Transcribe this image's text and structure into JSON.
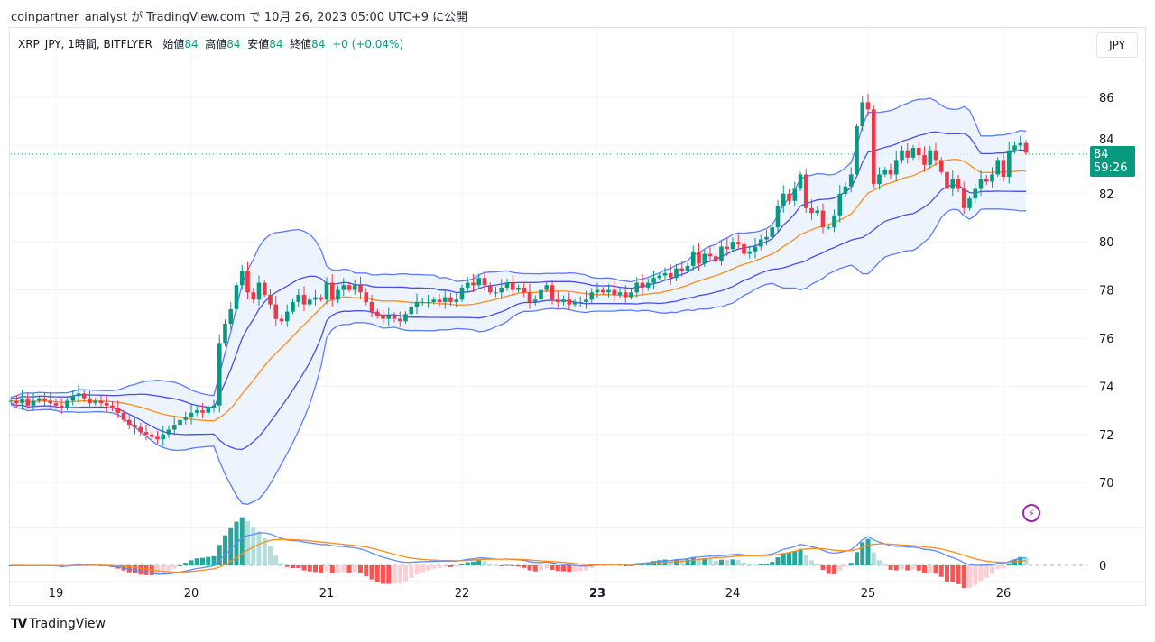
{
  "header": {
    "published": "coinpartner_analyst が TradingView.com で 10月 26, 2023 05:00 UTC+9 に公開"
  },
  "legend": {
    "symbol": "XRP_JPY, 1時間, BITFLYER",
    "open_label": "始値",
    "open": "84",
    "high_label": "高値",
    "high": "84",
    "low_label": "安値",
    "low": "84",
    "close_label": "終値",
    "close": "84",
    "change": "+0 (+0.04%)"
  },
  "currency_button": "JPY",
  "price_tag": {
    "price": "84",
    "countdown": "59:26"
  },
  "footer": {
    "brand": "TradingView",
    "logo_text": "TV"
  },
  "colors": {
    "up": "#089981",
    "down": "#f23645",
    "bb_outer": "#5b7cff",
    "bb_inner": "#4a4fe8",
    "basis": "#ff8c1a",
    "band_fill": "#e8f1fd",
    "macd": "#5b8cff",
    "signal": "#ff8c1a",
    "alert_icon": "#9c27b0"
  },
  "icons": {
    "alert": "lightning-icon"
  },
  "chart_data": {
    "type": "candlestick",
    "interval": "1時間",
    "y_ticks": [
      "86",
      "84",
      "82",
      "80",
      "78",
      "76",
      "74",
      "72",
      "70"
    ],
    "ylim": [
      69,
      87
    ],
    "x_tick_labels": [
      "19",
      "20",
      "21",
      "22",
      "23",
      "24",
      "25",
      "26"
    ],
    "grid": true,
    "indicators": [
      "Bollinger Bands (2σ)",
      "Bollinger Bands (1σ)",
      "MACD"
    ],
    "macd_zero_label": "0",
    "close": [
      73.4,
      73.3,
      73.5,
      73.2,
      73.4,
      73.5,
      73.4,
      73.3,
      73.2,
      73.1,
      73.4,
      73.6,
      73.7,
      73.5,
      73.3,
      73.4,
      73.3,
      73.2,
      73.1,
      72.9,
      72.6,
      72.4,
      72.3,
      72.1,
      72.0,
      71.9,
      71.8,
      72.0,
      72.2,
      72.4,
      72.6,
      72.7,
      72.9,
      73.0,
      72.9,
      73.1,
      73.2,
      75.8,
      76.6,
      77.2,
      78.2,
      78.8,
      77.9,
      77.6,
      78.3,
      77.8,
      77.4,
      76.8,
      76.7,
      77.1,
      77.5,
      77.8,
      77.4,
      77.6,
      77.7,
      77.6,
      78.3,
      77.6,
      78.0,
      78.2,
      78.0,
      78.2,
      77.9,
      77.5,
      77.1,
      76.9,
      76.8,
      76.9,
      76.8,
      76.7,
      77.0,
      77.3,
      77.5,
      77.5,
      77.5,
      77.6,
      77.5,
      77.7,
      77.5,
      77.6,
      78.1,
      78.3,
      78.2,
      78.5,
      78.2,
      77.9,
      77.9,
      78.1,
      78.3,
      78.0,
      78.1,
      77.9,
      77.5,
      77.6,
      78.0,
      78.2,
      77.6,
      77.5,
      77.6,
      77.4,
      77.5,
      77.5,
      77.6,
      77.9,
      78.0,
      77.9,
      78.0,
      77.8,
      77.9,
      77.7,
      77.9,
      78.3,
      78.1,
      78.3,
      78.5,
      78.6,
      78.7,
      78.5,
      78.9,
      78.8,
      79.0,
      79.6,
      79.1,
      79.5,
      79.4,
      79.2,
      79.8,
      79.7,
      80.0,
      79.9,
      79.5,
      79.6,
      79.8,
      80.1,
      80.2,
      80.6,
      81.5,
      82.0,
      81.7,
      82.2,
      82.8,
      81.4,
      81.2,
      81.3,
      80.6,
      80.6,
      81.1,
      82.0,
      82.3,
      82.8,
      84.8,
      85.8,
      85.5,
      82.4,
      82.8,
      83.0,
      82.8,
      83.4,
      83.8,
      83.5,
      83.9,
      83.6,
      83.2,
      83.8,
      83.4,
      82.9,
      82.2,
      82.6,
      82.2,
      81.4,
      81.8,
      82.2,
      82.6,
      82.5,
      82.8,
      83.4,
      82.7,
      83.8,
      84.0,
      84.1,
      83.7
    ]
  }
}
